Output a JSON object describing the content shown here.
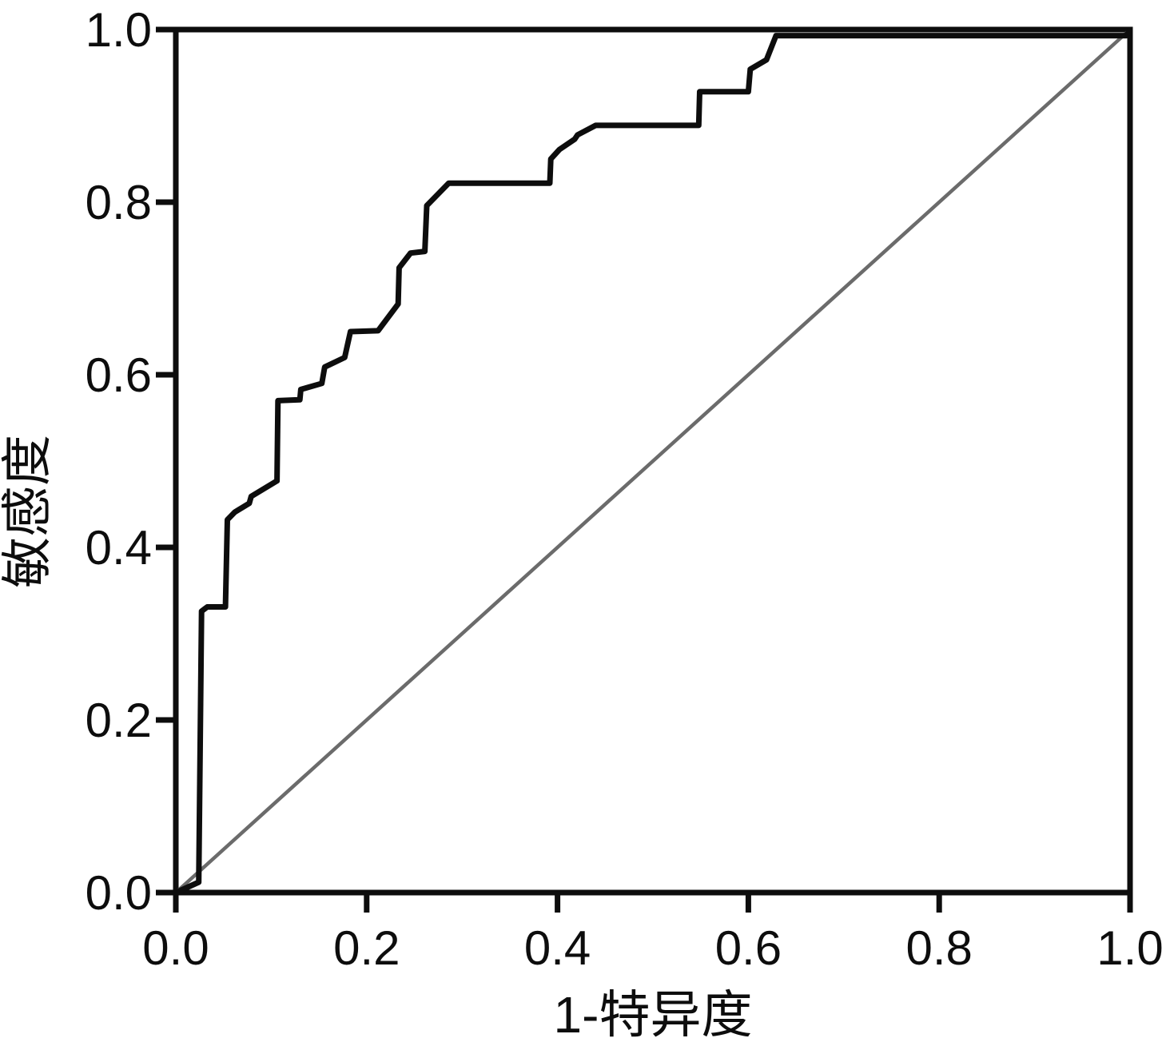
{
  "chart_data": {
    "type": "line",
    "subtype": "roc-curve",
    "title": "",
    "xlabel": "1-特异度",
    "ylabel": "敏感度",
    "xlim": [
      0.0,
      1.0
    ],
    "ylim": [
      0.0,
      1.0
    ],
    "grid": false,
    "legend": "none",
    "x_ticks": {
      "values": [
        0.0,
        0.2,
        0.4,
        0.6,
        0.8,
        1.0
      ],
      "labels": [
        "0.0",
        "0.2",
        "0.4",
        "0.6",
        "0.8",
        "1.0"
      ]
    },
    "y_ticks": {
      "values": [
        0.0,
        0.2,
        0.4,
        0.6,
        0.8,
        1.0
      ],
      "labels": [
        "0.0",
        "0.2",
        "0.4",
        "0.6",
        "0.8",
        "1.0"
      ]
    },
    "series": [
      {
        "name": "roc-curve",
        "color": "#0d0d0d",
        "stroke_width": 7,
        "points": [
          [
            0.0,
            0.0
          ],
          [
            0.024,
            0.012
          ],
          [
            0.027,
            0.326
          ],
          [
            0.033,
            0.331
          ],
          [
            0.052,
            0.331
          ],
          [
            0.054,
            0.432
          ],
          [
            0.062,
            0.441
          ],
          [
            0.077,
            0.451
          ],
          [
            0.079,
            0.459
          ],
          [
            0.106,
            0.477
          ],
          [
            0.107,
            0.57
          ],
          [
            0.13,
            0.571
          ],
          [
            0.131,
            0.583
          ],
          [
            0.153,
            0.59
          ],
          [
            0.156,
            0.609
          ],
          [
            0.177,
            0.62
          ],
          [
            0.183,
            0.65
          ],
          [
            0.212,
            0.651
          ],
          [
            0.233,
            0.682
          ],
          [
            0.234,
            0.724
          ],
          [
            0.246,
            0.741
          ],
          [
            0.261,
            0.743
          ],
          [
            0.263,
            0.796
          ],
          [
            0.286,
            0.822
          ],
          [
            0.392,
            0.822
          ],
          [
            0.393,
            0.85
          ],
          [
            0.402,
            0.861
          ],
          [
            0.418,
            0.873
          ],
          [
            0.421,
            0.878
          ],
          [
            0.44,
            0.889
          ],
          [
            0.548,
            0.889
          ],
          [
            0.549,
            0.928
          ],
          [
            0.6,
            0.928
          ],
          [
            0.602,
            0.954
          ],
          [
            0.619,
            0.965
          ],
          [
            0.629,
            0.993
          ],
          [
            0.996,
            0.993
          ],
          [
            1.0,
            1.0
          ]
        ]
      },
      {
        "name": "reference-diagonal",
        "color": "#6b6b6b",
        "stroke_width": 4.5,
        "points": [
          [
            0.0,
            0.0
          ],
          [
            1.0,
            1.0
          ]
        ]
      }
    ]
  },
  "colors": {
    "background": "#ffffff",
    "frame": "#0d0d0d",
    "curve": "#0d0d0d",
    "reference": "#6b6b6b",
    "text": "#0d0d0d"
  }
}
